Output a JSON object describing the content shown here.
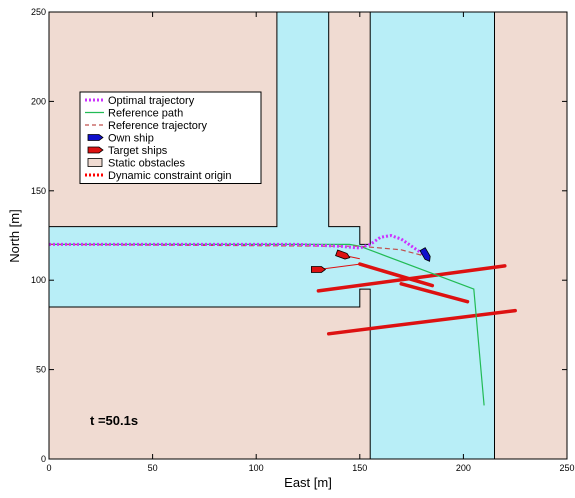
{
  "chart_data": {
    "type": "line",
    "title": "",
    "xlabel": "East [m]",
    "ylabel": "North [m]",
    "xlim": [
      0,
      250
    ],
    "ylim": [
      0,
      250
    ],
    "xticks": [
      0,
      50,
      100,
      150,
      200,
      250
    ],
    "yticks": [
      0,
      50,
      100,
      150,
      200,
      250
    ],
    "annotation": "t =50.1s",
    "legend_position": "upper-left",
    "legend": [
      {
        "label": "Optimal trajectory",
        "style": "dotted",
        "color": "#cc33ff"
      },
      {
        "label": "Reference path",
        "style": "solid",
        "color": "#22bb55"
      },
      {
        "label": "Reference trajectory",
        "style": "dashed",
        "color": "#c0504d"
      },
      {
        "label": "Own ship",
        "style": "marker",
        "color": "#1010cc"
      },
      {
        "label": "Target ships",
        "style": "marker",
        "color": "#dd1111"
      },
      {
        "label": "Static obstacles",
        "style": "patch",
        "color": "#f0dbd2"
      },
      {
        "label": "Dynamic constraint origin",
        "style": "dotted",
        "color": "#ff0000"
      }
    ],
    "colors": {
      "water": "#b8eef7",
      "obstacle": "#f0dbd2",
      "optimal": "#cc33ff",
      "reference_path": "#22bb55",
      "reference_traj": "#c0504d",
      "own_ship": "#1010cc",
      "target": "#dd1111"
    },
    "water_region": [
      [
        0,
        250
      ],
      [
        250,
        250
      ],
      [
        250,
        0
      ],
      [
        0,
        0
      ]
    ],
    "static_obstacles": [
      [
        [
          0,
          250
        ],
        [
          110,
          250
        ],
        [
          110,
          130
        ],
        [
          0,
          130
        ]
      ],
      [
        [
          135,
          250
        ],
        [
          155,
          250
        ],
        [
          155,
          120
        ],
        [
          150,
          120
        ],
        [
          150,
          130
        ],
        [
          135,
          130
        ]
      ],
      [
        [
          215,
          250
        ],
        [
          250,
          250
        ],
        [
          250,
          0
        ],
        [
          215,
          0
        ]
      ],
      [
        [
          0,
          85
        ],
        [
          150,
          85
        ],
        [
          150,
          95
        ],
        [
          155,
          95
        ],
        [
          155,
          0
        ],
        [
          0,
          0
        ]
      ]
    ],
    "optimal_trajectory": [
      [
        0,
        120
      ],
      [
        20,
        120
      ],
      [
        40,
        120
      ],
      [
        60,
        120
      ],
      [
        80,
        120
      ],
      [
        100,
        120
      ],
      [
        120,
        120
      ],
      [
        140,
        119
      ],
      [
        150,
        118
      ],
      [
        155,
        120
      ],
      [
        160,
        124
      ],
      [
        165,
        125
      ],
      [
        170,
        123
      ],
      [
        175,
        119
      ],
      [
        180,
        115
      ],
      [
        182,
        114
      ]
    ],
    "reference_path": [
      [
        0,
        120
      ],
      [
        145,
        120
      ],
      [
        150,
        119
      ],
      [
        205,
        95
      ],
      [
        210,
        30
      ]
    ],
    "reference_trajectory": [
      [
        0,
        120
      ],
      [
        140,
        119
      ],
      [
        150,
        119
      ],
      [
        160,
        118
      ],
      [
        170,
        117
      ],
      [
        183,
        113
      ]
    ],
    "own_ship": {
      "x": 182,
      "y": 114,
      "heading_deg": -60
    },
    "target_ships": [
      {
        "x": 130,
        "y": 106,
        "heading_deg": 0,
        "track": [
          [
            130,
            106
          ],
          [
            150,
            109
          ]
        ]
      },
      {
        "x": 142,
        "y": 114,
        "heading_deg": -20,
        "track": [
          [
            142,
            114
          ],
          [
            150,
            112
          ]
        ]
      }
    ],
    "dynamic_constraints": [
      [
        [
          150,
          109
        ],
        [
          185,
          97
        ]
      ],
      [
        [
          170,
          98
        ],
        [
          202,
          88
        ]
      ],
      [
        [
          130,
          94
        ],
        [
          220,
          108
        ]
      ],
      [
        [
          135,
          70
        ],
        [
          225,
          83
        ]
      ]
    ]
  }
}
